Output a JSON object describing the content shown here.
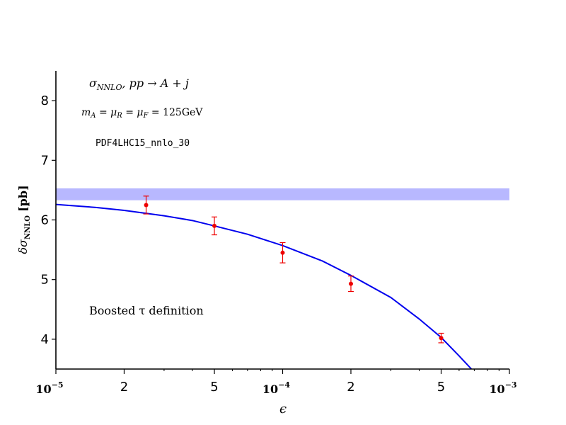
{
  "chart_data": {
    "type": "line",
    "xscale": "log",
    "xlim": [
      1e-05,
      0.001
    ],
    "ylim": [
      3.5,
      8.5
    ],
    "xlabel": "ϵ",
    "ylabel_main": "δσ",
    "ylabel_sub": "NNLO",
    "ylabel_unit": "[pb]",
    "yticks": [
      4,
      5,
      6,
      7,
      8
    ],
    "ytick_labels": [
      "4",
      "5",
      "6",
      "7",
      "8"
    ],
    "xticks": [
      {
        "value": 1e-05,
        "label": "10",
        "exp": "−5",
        "decade": true
      },
      {
        "value": 2e-05,
        "label": "2",
        "decade": false
      },
      {
        "value": 5e-05,
        "label": "5",
        "decade": false
      },
      {
        "value": 0.0001,
        "label": "10",
        "exp": "−4",
        "decade": true
      },
      {
        "value": 0.0002,
        "label": "2",
        "decade": false
      },
      {
        "value": 0.0005,
        "label": "5",
        "decade": false
      },
      {
        "value": 0.001,
        "label": "10",
        "exp": "−3",
        "decade": true
      }
    ],
    "minor_xticks": [
      3e-05,
      4e-05,
      6e-05,
      7e-05,
      8e-05,
      9e-05,
      0.0003,
      0.0004,
      0.0006,
      0.0007,
      0.0008,
      0.0009
    ],
    "band": {
      "ymin": 6.33,
      "ymax": 6.53,
      "color": "#b8b8ff"
    },
    "curve": {
      "color": "#0000ee",
      "points": [
        {
          "x": 1e-05,
          "y": 6.26
        },
        {
          "x": 1.5e-05,
          "y": 6.21
        },
        {
          "x": 2e-05,
          "y": 6.16
        },
        {
          "x": 3e-05,
          "y": 6.07
        },
        {
          "x": 4e-05,
          "y": 5.99
        },
        {
          "x": 5e-05,
          "y": 5.9
        },
        {
          "x": 7e-05,
          "y": 5.76
        },
        {
          "x": 0.0001,
          "y": 5.57
        },
        {
          "x": 0.00015,
          "y": 5.31
        },
        {
          "x": 0.0002,
          "y": 5.07
        },
        {
          "x": 0.0003,
          "y": 4.7
        },
        {
          "x": 0.0004,
          "y": 4.34
        },
        {
          "x": 0.0005,
          "y": 4.03
        },
        {
          "x": 0.0006,
          "y": 3.72
        },
        {
          "x": 0.00068,
          "y": 3.5
        }
      ]
    },
    "points": {
      "color": "#ee0000",
      "data": [
        {
          "x": 2.5e-05,
          "y": 6.25,
          "err": 0.15
        },
        {
          "x": 5e-05,
          "y": 5.9,
          "err": 0.15
        },
        {
          "x": 0.0001,
          "y": 5.45,
          "err": 0.17
        },
        {
          "x": 0.0002,
          "y": 4.93,
          "err": 0.13
        },
        {
          "x": 0.0005,
          "y": 4.02,
          "err": 0.08
        }
      ]
    },
    "annotations": {
      "title_main": "σ",
      "title_sub": "NNLO",
      "title_rest": ", pp → A + j",
      "scale_text": "m",
      "scale_sub": "A",
      "scale_eq1": " = μ",
      "scale_sub2": "R",
      "scale_eq2": " = μ",
      "scale_sub3": "F",
      "scale_value": " = 125GeV",
      "pdf": "PDF4LHC15_nnlo_30",
      "definition": "Boosted τ definition"
    }
  }
}
